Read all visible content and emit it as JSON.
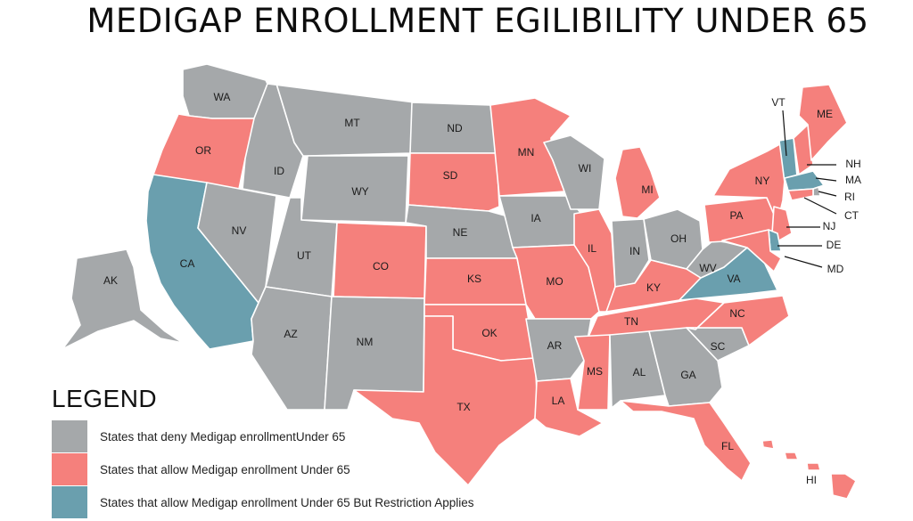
{
  "title": "MEDIGAP ENROLLMENT EGILIBILITY UNDER 65",
  "colors": {
    "deny": "#a5a8aa",
    "allow": "#f5807c",
    "restricted": "#6a9fae"
  },
  "legend": {
    "title": "LEGEND",
    "items": [
      {
        "label": "States that deny Medigap enrollmentUnder 65",
        "category": "deny"
      },
      {
        "label": "States that allow Medigap enrollment Under 65",
        "category": "allow"
      },
      {
        "label": "States that allow Medigap enrollment Under 65 But Restriction Applies",
        "category": "restricted"
      }
    ]
  },
  "states": [
    {
      "abbr": "WA",
      "category": "deny"
    },
    {
      "abbr": "OR",
      "category": "allow"
    },
    {
      "abbr": "CA",
      "category": "restricted"
    },
    {
      "abbr": "NV",
      "category": "deny"
    },
    {
      "abbr": "ID",
      "category": "deny"
    },
    {
      "abbr": "MT",
      "category": "deny"
    },
    {
      "abbr": "WY",
      "category": "deny"
    },
    {
      "abbr": "UT",
      "category": "deny"
    },
    {
      "abbr": "AZ",
      "category": "deny"
    },
    {
      "abbr": "CO",
      "category": "allow"
    },
    {
      "abbr": "NM",
      "category": "deny"
    },
    {
      "abbr": "ND",
      "category": "deny"
    },
    {
      "abbr": "SD",
      "category": "allow"
    },
    {
      "abbr": "NE",
      "category": "deny"
    },
    {
      "abbr": "KS",
      "category": "allow"
    },
    {
      "abbr": "OK",
      "category": "allow"
    },
    {
      "abbr": "TX",
      "category": "allow"
    },
    {
      "abbr": "MN",
      "category": "allow"
    },
    {
      "abbr": "IA",
      "category": "deny"
    },
    {
      "abbr": "MO",
      "category": "allow"
    },
    {
      "abbr": "AR",
      "category": "deny"
    },
    {
      "abbr": "LA",
      "category": "allow"
    },
    {
      "abbr": "WI",
      "category": "deny"
    },
    {
      "abbr": "IL",
      "category": "allow"
    },
    {
      "abbr": "MI",
      "category": "allow"
    },
    {
      "abbr": "IN",
      "category": "deny"
    },
    {
      "abbr": "OH",
      "category": "deny"
    },
    {
      "abbr": "KY",
      "category": "allow"
    },
    {
      "abbr": "TN",
      "category": "allow"
    },
    {
      "abbr": "MS",
      "category": "allow"
    },
    {
      "abbr": "AL",
      "category": "deny"
    },
    {
      "abbr": "GA",
      "category": "deny"
    },
    {
      "abbr": "FL",
      "category": "allow"
    },
    {
      "abbr": "SC",
      "category": "deny"
    },
    {
      "abbr": "NC",
      "category": "allow"
    },
    {
      "abbr": "VA",
      "category": "restricted"
    },
    {
      "abbr": "WV",
      "category": "deny"
    },
    {
      "abbr": "PA",
      "category": "allow"
    },
    {
      "abbr": "NY",
      "category": "allow"
    },
    {
      "abbr": "VT",
      "category": "restricted"
    },
    {
      "abbr": "NH",
      "category": "allow"
    },
    {
      "abbr": "ME",
      "category": "allow"
    },
    {
      "abbr": "MA",
      "category": "restricted"
    },
    {
      "abbr": "RI",
      "category": "deny"
    },
    {
      "abbr": "CT",
      "category": "allow"
    },
    {
      "abbr": "NJ",
      "category": "allow"
    },
    {
      "abbr": "DE",
      "category": "restricted"
    },
    {
      "abbr": "MD",
      "category": "allow"
    },
    {
      "abbr": "AK",
      "category": "deny"
    },
    {
      "abbr": "HI",
      "category": "allow"
    }
  ]
}
